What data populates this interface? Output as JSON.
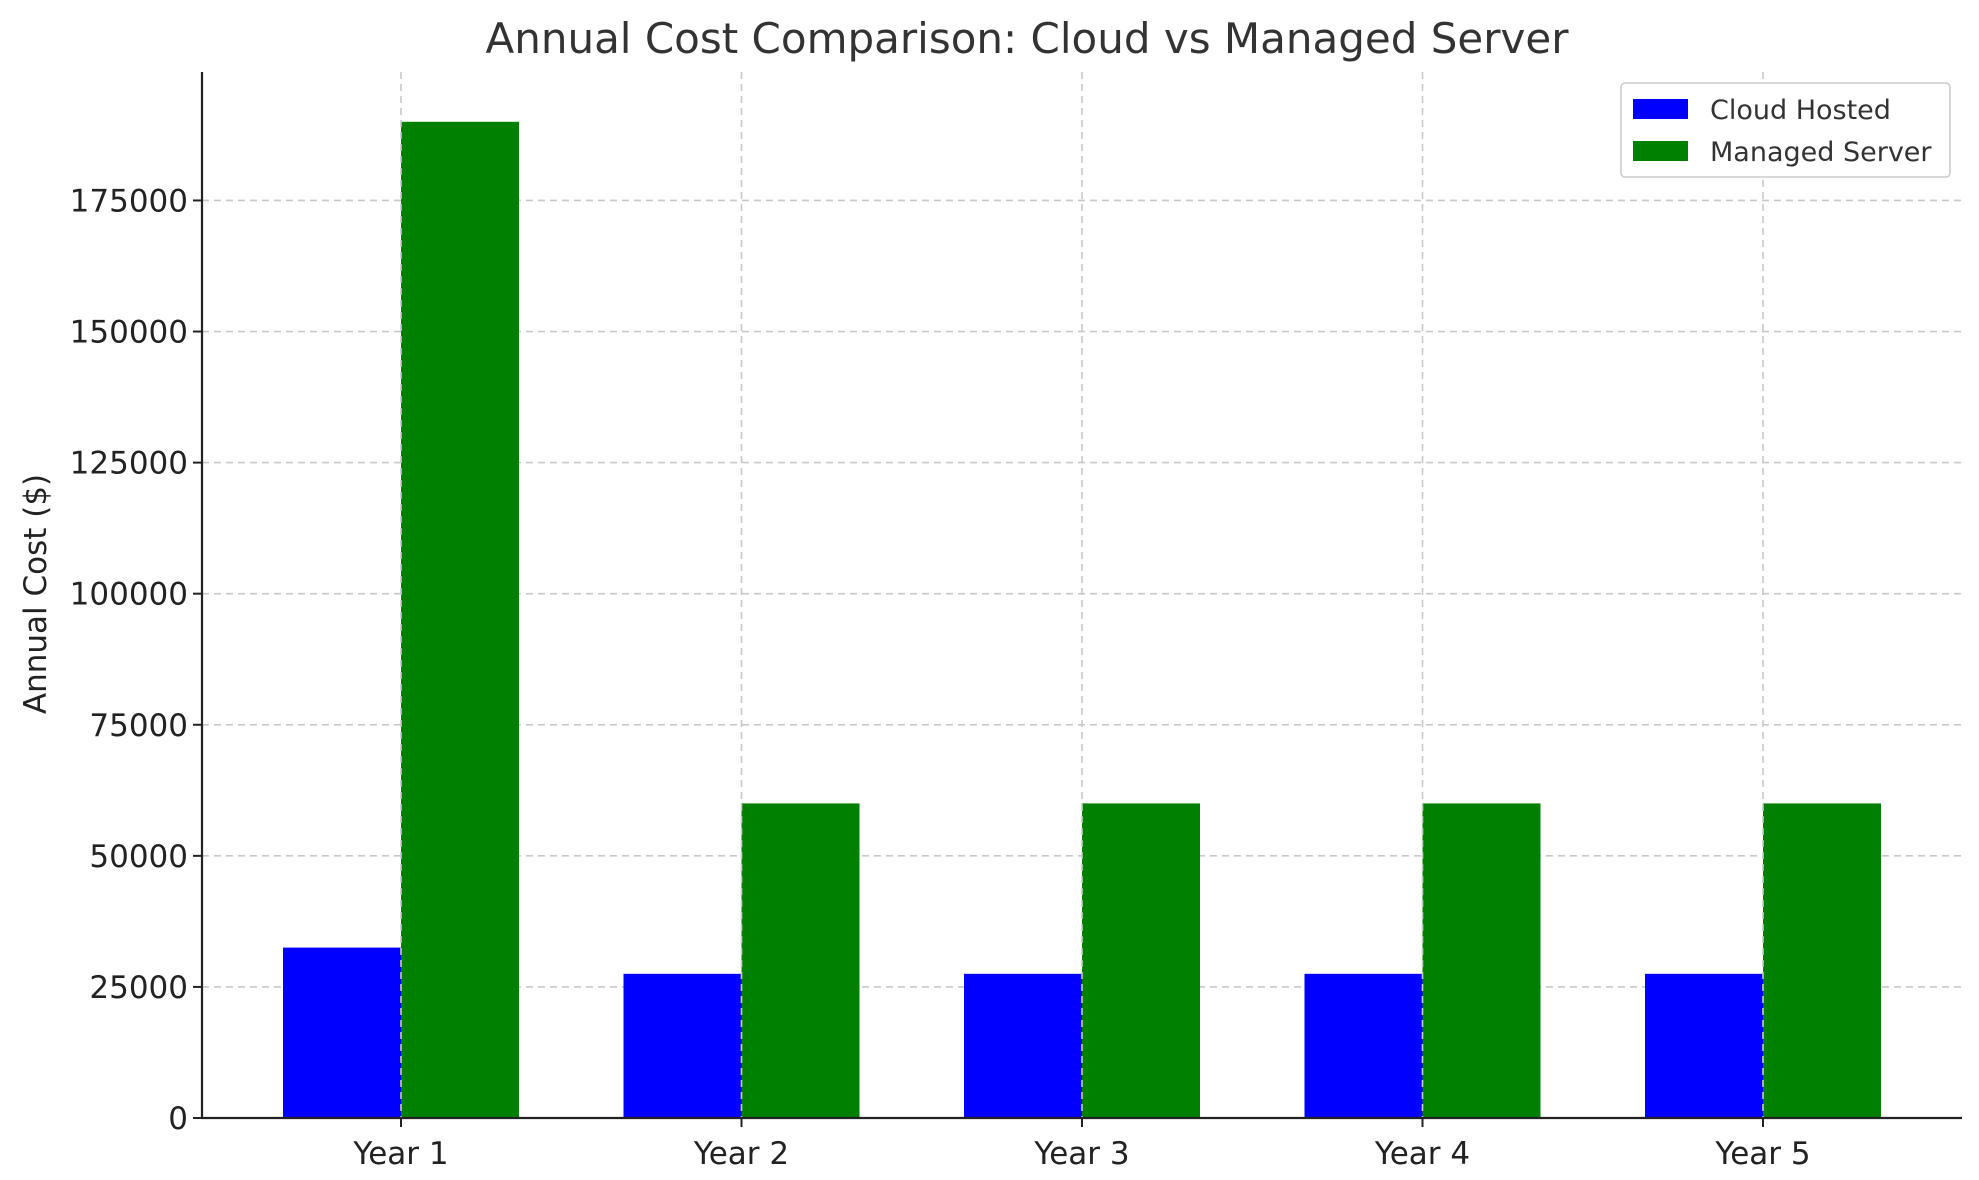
{
  "chart_data": {
    "type": "bar",
    "title": "Annual Cost Comparison: Cloud vs Managed Server",
    "xlabel": "",
    "ylabel": "Annual Cost ($)",
    "categories": [
      "Year 1",
      "Year 2",
      "Year 3",
      "Year 4",
      "Year 5"
    ],
    "series": [
      {
        "name": "Cloud Hosted",
        "color": "#0000ff",
        "values": [
          32500,
          27500,
          27500,
          27500,
          27500
        ]
      },
      {
        "name": "Managed Server",
        "color": "#008000",
        "values": [
          190000,
          60000,
          60000,
          60000,
          60000
        ]
      }
    ],
    "ylim": [
      0,
      199500
    ],
    "yticks": [
      0,
      25000,
      50000,
      75000,
      100000,
      125000,
      150000,
      175000
    ],
    "ytick_labels": [
      "0",
      "25000",
      "50000",
      "75000",
      "100000",
      "125000",
      "150000",
      "175000"
    ],
    "grid": true,
    "legend_position": "top-right"
  }
}
